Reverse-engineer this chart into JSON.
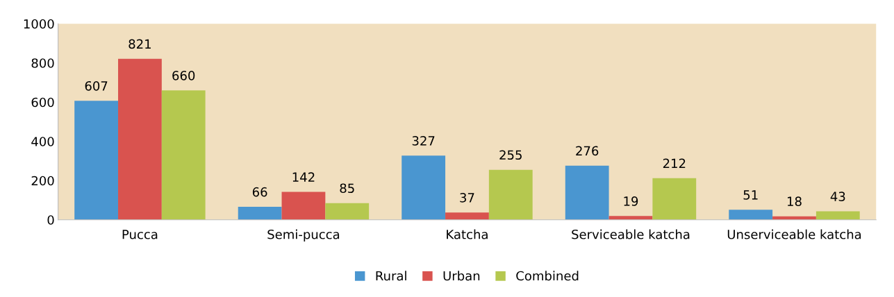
{
  "chart_data": {
    "type": "bar",
    "categories": [
      "Pucca",
      "Semi-pucca",
      "Katcha",
      "Serviceable katcha",
      "Unserviceable katcha"
    ],
    "series": [
      {
        "name": "Rural",
        "color": "#4a96d0",
        "values": [
          607,
          66,
          327,
          276,
          51
        ]
      },
      {
        "name": "Urban",
        "color": "#d9534f",
        "values": [
          821,
          142,
          37,
          19,
          18
        ]
      },
      {
        "name": "Combined",
        "color": "#b5c84f",
        "values": [
          660,
          85,
          255,
          212,
          43
        ]
      }
    ],
    "ylim": [
      0,
      1000
    ],
    "yticks": [
      0,
      200,
      400,
      600,
      800,
      1000
    ],
    "data_labels": true,
    "grid": false,
    "legend": "bottom"
  }
}
